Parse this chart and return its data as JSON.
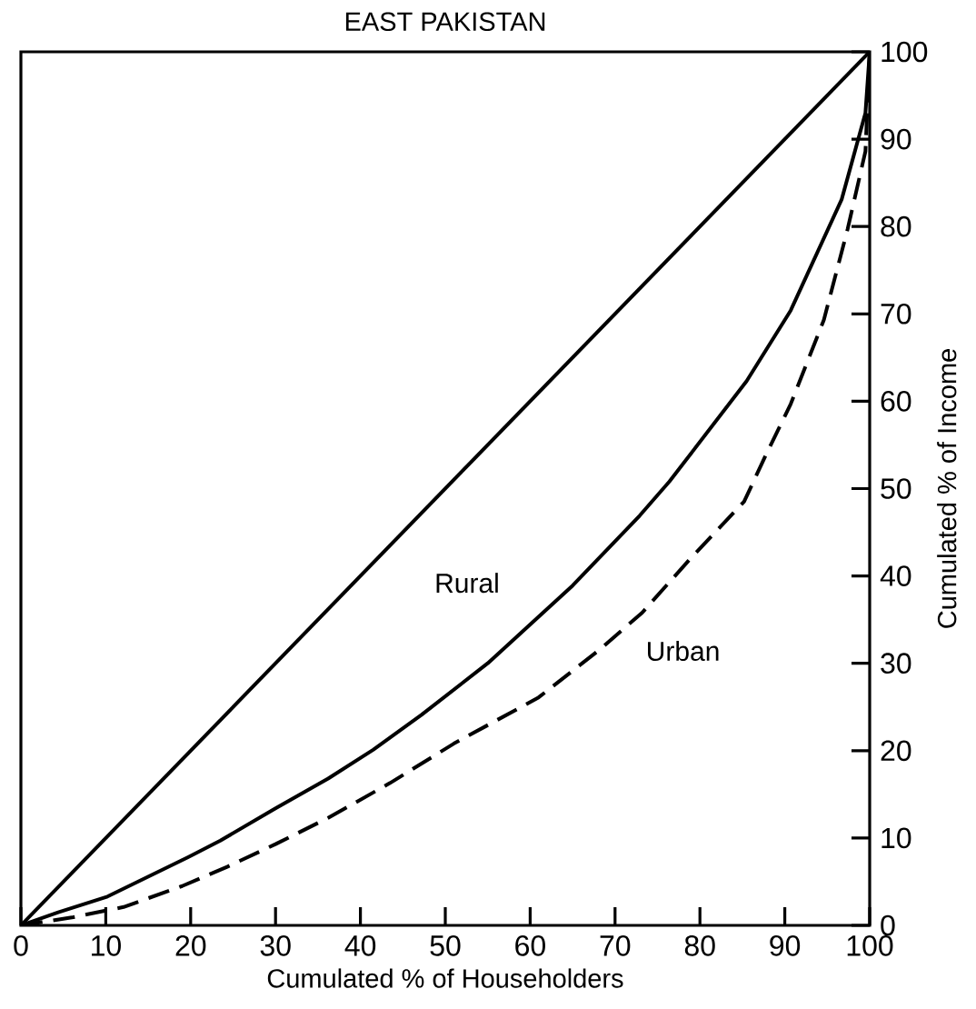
{
  "chart_data": {
    "type": "line",
    "title": "EAST PAKISTAN",
    "xlabel": "Cumulated % of Householders",
    "ylabel": "Cumulated % of Income",
    "xlim": [
      0,
      100
    ],
    "ylim": [
      0,
      100
    ],
    "xticks": [
      0,
      10,
      20,
      30,
      40,
      50,
      60,
      70,
      80,
      90,
      100
    ],
    "yticks": [
      0,
      10,
      20,
      30,
      40,
      50,
      60,
      70,
      80,
      90,
      100
    ],
    "grid": false,
    "marker": "none",
    "series": [
      {
        "color": "#000000",
        "line_style": "solid",
        "x": [
          0,
          100
        ],
        "values": [
          0,
          100
        ]
      },
      {
        "name": "Rural",
        "color": "#000000",
        "line_style": "solid",
        "x": [
          0,
          4.4,
          10.2,
          19.7,
          23.5,
          30,
          36.2,
          41.5,
          47.2,
          55,
          65,
          72.9,
          76.4,
          85.5,
          90.7,
          96.7,
          99.5,
          100
        ],
        "values": [
          0,
          1.5,
          3.3,
          7.8,
          9.7,
          13.4,
          16.8,
          20.1,
          24.1,
          30,
          38.9,
          46.9,
          50.8,
          62.3,
          70.4,
          83.1,
          93,
          100
        ]
      },
      {
        "name": "Urban",
        "color": "#000000",
        "line_style": "dashed",
        "x": [
          0,
          6,
          12.1,
          19,
          24.3,
          30,
          36.2,
          43.5,
          51,
          61,
          68.1,
          73.2,
          78.8,
          85.2,
          87.6,
          90.7,
          94.6,
          97.4,
          99.5,
          100
        ],
        "values": [
          0,
          0.9,
          2.1,
          4.5,
          6.7,
          9.3,
          12.3,
          16.3,
          20.8,
          26.1,
          31.5,
          35.8,
          41.9,
          48.5,
          53.5,
          59.7,
          69.3,
          79.7,
          88.6,
          100
        ]
      }
    ]
  }
}
